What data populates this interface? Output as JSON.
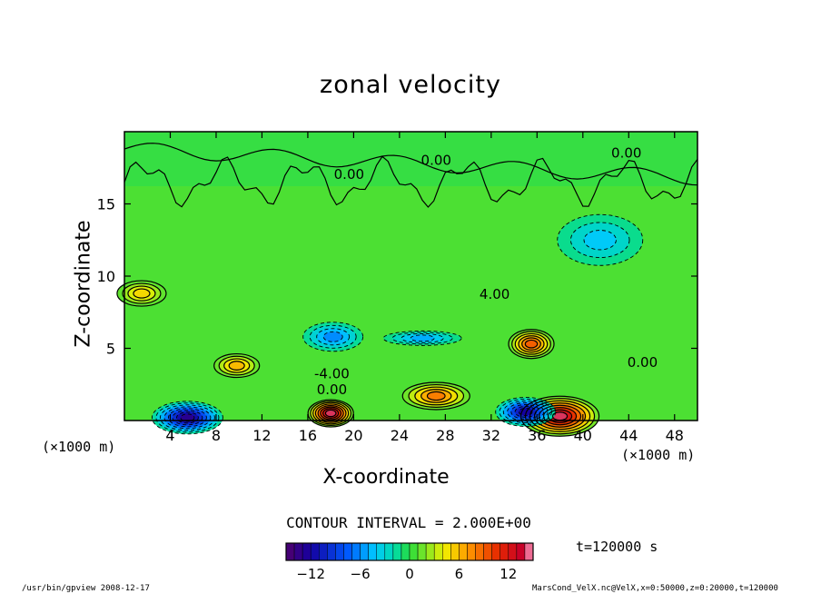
{
  "chart_data": {
    "type": "heatmap",
    "title": "zonal velocity",
    "xlabel": "X-coordinate",
    "ylabel": "Z-coordinate",
    "x_unit": "(×1000 m)",
    "y_unit": "(×1000 m)",
    "xlim": [
      0,
      50
    ],
    "ylim": [
      0,
      20
    ],
    "x_ticks": [
      4,
      8,
      12,
      16,
      20,
      24,
      28,
      32,
      36,
      40,
      44,
      48
    ],
    "y_ticks": [
      5,
      10,
      15
    ],
    "contour_interval": "CONTOUR INTERVAL = 2.000E+00",
    "contour_labels": [
      {
        "text": "0.00",
        "x": 27.2,
        "z": 18.0
      },
      {
        "text": "0.00",
        "x": 43.8,
        "z": 18.5
      },
      {
        "text": "0.00",
        "x": 19.6,
        "z": 17.0
      },
      {
        "text": "4.00",
        "x": 32.3,
        "z": 8.7
      },
      {
        "text": "-4.00",
        "x": 18.1,
        "z": 3.2
      },
      {
        "text": "0.00",
        "x": 18.1,
        "z": 2.1
      },
      {
        "text": "0.00",
        "x": 45.2,
        "z": 4.0
      }
    ],
    "features": [
      {
        "sign": "positive",
        "x": 35.5,
        "z": 5.3,
        "peak": 9
      },
      {
        "sign": "positive",
        "x": 18.0,
        "z": 0.5,
        "peak": 14
      },
      {
        "sign": "positive",
        "x": 38.0,
        "z": 0.3,
        "peak": 14
      },
      {
        "sign": "positive",
        "x": 27.2,
        "z": 1.7,
        "peak": 8
      },
      {
        "sign": "positive",
        "x": 9.8,
        "z": 3.8,
        "peak": 6
      },
      {
        "sign": "positive",
        "x": 1.5,
        "z": 8.8,
        "peak": 5
      },
      {
        "sign": "negative",
        "x": 18.2,
        "z": 5.8,
        "peak": -6
      },
      {
        "sign": "negative",
        "x": 26.0,
        "z": 5.7,
        "peak": -5
      },
      {
        "sign": "negative",
        "x": 5.5,
        "z": 0.2,
        "peak": -13
      },
      {
        "sign": "negative",
        "x": 35.0,
        "z": 0.6,
        "peak": -12
      },
      {
        "sign": "negative",
        "x": 41.5,
        "z": 12.5,
        "peak": -4
      }
    ],
    "colorbar": {
      "range": [
        -15,
        15
      ],
      "tick_values": [
        -12,
        -6,
        0,
        6,
        12
      ],
      "tick_labels": [
        "−12",
        "−6",
        "0",
        "6",
        "12"
      ]
    }
  },
  "annotations": {
    "time": "t=120000 s",
    "footer_left": "/usr/bin/gpview  2008-12-17",
    "footer_right": "MarsCond_VelX.nc@VelX,x=0:50000,z=0:20000,t=120000"
  }
}
